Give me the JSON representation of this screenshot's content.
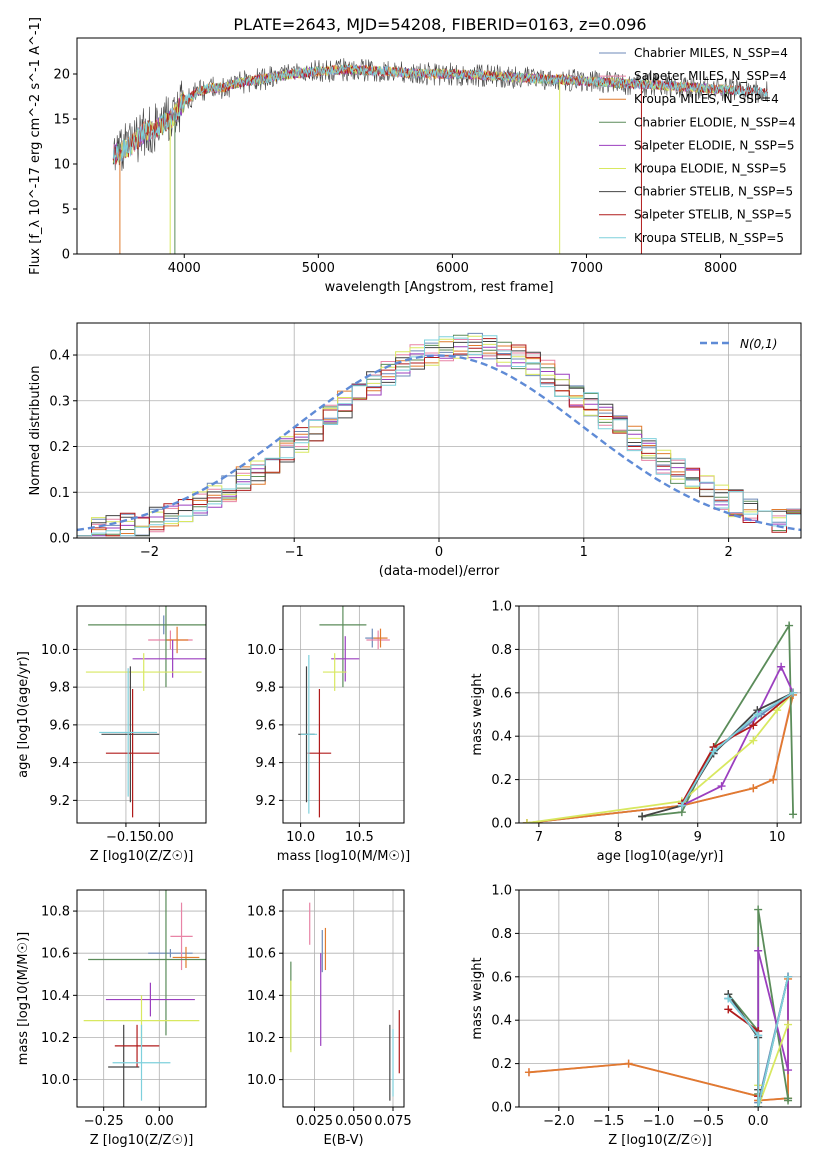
{
  "title": "PLATE=2643, MJD=54208, FIBERID=0163, z=0.096",
  "colors": [
    "#6e8ab8",
    "#e884a6",
    "#e07b2f",
    "#5b8c5a",
    "#9b3fbf",
    "#d8e860",
    "#444444",
    "#b01b1b",
    "#7ed0dc"
  ],
  "legend": [
    "Chabrier MILES, N_SSP=4",
    "Salpeter MILES, N_SSP=4",
    "Kroupa MILES, N_SSP=4",
    "Chabrier ELODIE, N_SSP=4",
    "Salpeter ELODIE, N_SSP=5",
    "Kroupa ELODIE, N_SSP=5",
    "Chabrier STELIB, N_SSP=5",
    "Salpeter STELIB, N_SSP=5",
    "Kroupa STELIB, N_SSP=5"
  ],
  "chart_data": [
    {
      "id": "spectrum",
      "type": "line",
      "xlabel": "wavelength [Angstrom, rest frame]",
      "ylabel": "Flux [f_λ 10^-17 erg cm^-2 s^-1 A^-1]",
      "xlim": [
        3200,
        8600
      ],
      "ylim": [
        0,
        24
      ],
      "xticks": [
        4000,
        5000,
        6000,
        7000,
        8000
      ],
      "yticks": [
        0,
        5,
        10,
        15,
        20
      ],
      "grid": false,
      "legend_position": "right",
      "spectrum_profile": {
        "x": [
          3470,
          3600,
          3700,
          3800,
          3900,
          4000,
          4100,
          4200,
          4300,
          4400,
          4600,
          4800,
          5000,
          5200,
          5500,
          5800,
          6000,
          6300,
          6600,
          6900,
          7200,
          7500,
          7800,
          8100,
          8350
        ],
        "y": [
          11,
          12,
          13.5,
          14,
          15,
          17,
          18,
          18.5,
          18.5,
          19,
          19.5,
          20,
          20.3,
          20.5,
          20.3,
          20,
          20,
          19.8,
          19.5,
          19.3,
          19,
          18.8,
          18.5,
          18.2,
          18
        ]
      }
    },
    {
      "id": "residuals",
      "type": "line",
      "xlabel": "(data-model)/error",
      "ylabel": "Normed distribution",
      "xlim": [
        -2.5,
        2.5
      ],
      "ylim": [
        0,
        0.47
      ],
      "xticks": [
        -2,
        -1,
        0,
        1,
        2
      ],
      "yticks": [
        0.0,
        0.1,
        0.2,
        0.3,
        0.4
      ],
      "grid": true,
      "legend_position": "top-right",
      "legend_label": "N(0,1)",
      "bin_width": 0.1
    },
    {
      "id": "age_vs_Z",
      "type": "scatter",
      "xlabel": "Z [log10(Z/Z☉)]",
      "ylabel": "age  [log10(age/yr)]",
      "xlim": [
        -0.37,
        0.21
      ],
      "ylim": [
        9.08,
        10.23
      ],
      "xticks": [
        -0.15,
        0.0
      ],
      "xtick_labels": [
        "−0.15",
        "0.00"
      ],
      "yticks": [
        9.2,
        9.4,
        9.6,
        9.8,
        10.0
      ],
      "grid": true,
      "points": [
        {
          "x": 0.02,
          "y": 10.13,
          "xerr": 0.0,
          "yerr": 0.05
        },
        {
          "x": 0.05,
          "y": 10.05,
          "xerr": 0.1,
          "yerr": 0.05
        },
        {
          "x": 0.08,
          "y": 10.05,
          "xerr": 0.05,
          "yerr": 0.07
        },
        {
          "x": 0.03,
          "y": 10.13,
          "xerr": 0.35,
          "yerr": 0.33
        },
        {
          "x": 0.06,
          "y": 9.95,
          "xerr": 0.18,
          "yerr": 0.1
        },
        {
          "x": -0.07,
          "y": 9.88,
          "xerr": 0.26,
          "yerr": 0.1
        },
        {
          "x": -0.13,
          "y": 9.55,
          "xerr": 0.13,
          "yerr": 0.36
        },
        {
          "x": -0.12,
          "y": 9.45,
          "xerr": 0.12,
          "yerr": 0.34
        },
        {
          "x": -0.14,
          "y": 9.56,
          "xerr": 0.13,
          "yerr": 0.34
        }
      ]
    },
    {
      "id": "age_vs_mass",
      "type": "scatter",
      "xlabel": "mass [log10(M/M☉)]",
      "ylabel": "",
      "xlim": [
        9.85,
        10.88
      ],
      "ylim": [
        9.08,
        10.23
      ],
      "xticks": [
        10.0,
        10.5
      ],
      "xtick_labels": [
        "10.0",
        "10.5"
      ],
      "yticks": [
        9.2,
        9.4,
        9.6,
        9.8,
        10.0
      ],
      "grid": true,
      "points": [
        {
          "x": 10.61,
          "y": 10.06,
          "xerr": 0.06,
          "yerr": 0.05
        },
        {
          "x": 10.66,
          "y": 10.05,
          "xerr": 0.1,
          "yerr": 0.05
        },
        {
          "x": 10.68,
          "y": 10.06,
          "xerr": 0.06,
          "yerr": 0.05
        },
        {
          "x": 10.36,
          "y": 10.13,
          "xerr": 0.2,
          "yerr": 0.33
        },
        {
          "x": 10.38,
          "y": 9.95,
          "xerr": 0.12,
          "yerr": 0.12
        },
        {
          "x": 10.29,
          "y": 9.88,
          "xerr": 0.1,
          "yerr": 0.1
        },
        {
          "x": 10.05,
          "y": 9.55,
          "xerr": 0.07,
          "yerr": 0.36
        },
        {
          "x": 10.16,
          "y": 9.45,
          "xerr": 0.1,
          "yerr": 0.34
        },
        {
          "x": 10.07,
          "y": 9.55,
          "xerr": 0.07,
          "yerr": 0.42
        }
      ]
    },
    {
      "id": "weight_vs_age",
      "type": "line",
      "xlabel": "age  [log10(age/yr)]",
      "ylabel": "mass weight",
      "xlim": [
        6.75,
        10.3
      ],
      "ylim": [
        0,
        1.0
      ],
      "xticks": [
        7,
        8,
        9,
        10
      ],
      "yticks": [
        0.0,
        0.2,
        0.4,
        0.6,
        0.8,
        1.0
      ],
      "grid": true,
      "series": [
        {
          "x": [
            6.85,
            8.8,
            9.2,
            9.8,
            10.2
          ],
          "y": [
            0.0,
            0.08,
            0.33,
            0.5,
            0.6
          ]
        },
        {
          "x": [
            6.85,
            8.8,
            9.7,
            9.95,
            10.2
          ],
          "y": [
            0.0,
            0.08,
            0.16,
            0.2,
            0.6
          ]
        },
        {
          "x": [
            6.85,
            8.8,
            9.7,
            9.95,
            10.2
          ],
          "y": [
            0.0,
            0.08,
            0.16,
            0.2,
            0.59
          ]
        },
        {
          "x": [
            8.3,
            8.8,
            9.2,
            10.15,
            10.2
          ],
          "y": [
            0.03,
            0.05,
            0.35,
            0.91,
            0.04
          ]
        },
        {
          "x": [
            8.8,
            9.3,
            10.05,
            10.2,
            10.2
          ],
          "y": [
            0.08,
            0.17,
            0.72,
            0.6,
            0.6
          ]
        },
        {
          "x": [
            6.85,
            8.8,
            9.7,
            10.0,
            10.2
          ],
          "y": [
            0.0,
            0.1,
            0.38,
            0.52,
            0.6
          ]
        },
        {
          "x": [
            8.3,
            8.8,
            9.2,
            9.75,
            10.2
          ],
          "y": [
            0.03,
            0.08,
            0.32,
            0.52,
            0.6
          ]
        },
        {
          "x": [
            8.8,
            9.2,
            9.7,
            10.2
          ],
          "y": [
            0.09,
            0.35,
            0.45,
            0.6
          ]
        },
        {
          "x": [
            8.8,
            9.2,
            9.75,
            10.2
          ],
          "y": [
            0.08,
            0.33,
            0.5,
            0.6
          ]
        }
      ]
    },
    {
      "id": "mass_vs_Z",
      "type": "scatter",
      "xlabel": "Z [log10(Z/Z☉)]",
      "ylabel": "mass [log10(M/M☉)]",
      "xlim": [
        -0.37,
        0.21
      ],
      "ylim": [
        9.87,
        10.9
      ],
      "xticks": [
        -0.25,
        0.0
      ],
      "xtick_labels": [
        "−0.25",
        "0.00"
      ],
      "yticks": [
        10.0,
        10.2,
        10.4,
        10.6,
        10.8
      ],
      "grid": true,
      "points": [
        {
          "x": 0.05,
          "y": 10.6,
          "xerr": 0.1,
          "yerr": 0.02
        },
        {
          "x": 0.1,
          "y": 10.68,
          "xerr": 0.05,
          "yerr": 0.16
        },
        {
          "x": 0.12,
          "y": 10.58,
          "xerr": 0.06,
          "yerr": 0.05
        },
        {
          "x": 0.03,
          "y": 10.57,
          "xerr": 0.35,
          "yerr": 0.36
        },
        {
          "x": -0.04,
          "y": 10.38,
          "xerr": 0.2,
          "yerr": 0.08
        },
        {
          "x": -0.08,
          "y": 10.28,
          "xerr": 0.26,
          "yerr": 0.12
        },
        {
          "x": -0.16,
          "y": 10.06,
          "xerr": 0.07,
          "yerr": 0.2
        },
        {
          "x": -0.1,
          "y": 10.16,
          "xerr": 0.1,
          "yerr": 0.1
        },
        {
          "x": -0.08,
          "y": 10.08,
          "xerr": 0.13,
          "yerr": 0.18
        }
      ]
    },
    {
      "id": "mass_vs_ebv",
      "type": "scatter",
      "xlabel": "E(B-V)",
      "ylabel": "",
      "xlim": [
        0.005,
        0.082
      ],
      "ylim": [
        9.87,
        10.9
      ],
      "xticks": [
        0.025,
        0.05,
        0.075
      ],
      "xtick_labels": [
        "0.025",
        "0.050",
        "0.075"
      ],
      "yticks": [
        10.0,
        10.2,
        10.4,
        10.6,
        10.8
      ],
      "grid": true,
      "points": [
        {
          "x": 0.03,
          "y": 10.61,
          "yerr": 0.1
        },
        {
          "x": 0.022,
          "y": 10.74,
          "yerr": 0.1
        },
        {
          "x": 0.032,
          "y": 10.62,
          "yerr": 0.1
        },
        {
          "x": 0.01,
          "y": 10.35,
          "yerr": 0.21
        },
        {
          "x": 0.029,
          "y": 10.38,
          "yerr": 0.22
        },
        {
          "x": 0.01,
          "y": 10.3,
          "yerr": 0.17
        },
        {
          "x": 0.073,
          "y": 10.08,
          "yerr": 0.18
        },
        {
          "x": 0.079,
          "y": 10.18,
          "yerr": 0.15
        },
        {
          "x": 0.075,
          "y": 10.08,
          "yerr": 0.16
        }
      ]
    },
    {
      "id": "weight_vs_Z",
      "type": "line",
      "xlabel": "Z [log10(Z/Z☉)]",
      "ylabel": "mass weight",
      "xlim": [
        -2.4,
        0.43
      ],
      "ylim": [
        0,
        1.0
      ],
      "xticks": [
        -2.0,
        -1.5,
        -1.0,
        -0.5,
        0.0
      ],
      "xtick_labels": [
        "−2.0",
        "−1.5",
        "−1.0",
        "−0.5",
        "0.0"
      ],
      "yticks": [
        0.0,
        0.2,
        0.4,
        0.6,
        0.8,
        1.0
      ],
      "grid": true,
      "series": [
        {
          "x": [
            -0.3,
            0.0,
            0.0,
            0.0,
            0.0,
            0.3
          ],
          "y": [
            0.5,
            0.33,
            0.05,
            0.05,
            0.02,
            0.6
          ]
        },
        {
          "x": [
            -2.3,
            -1.3,
            0.0,
            0.0,
            0.3,
            0.3
          ],
          "y": [
            0.16,
            0.2,
            0.05,
            0.03,
            0.04,
            0.6
          ]
        },
        {
          "x": [
            -2.3,
            -1.3,
            0.0,
            0.0,
            0.3,
            0.3
          ],
          "y": [
            0.16,
            0.2,
            0.05,
            0.03,
            0.04,
            0.59
          ]
        },
        {
          "x": [
            -0.3,
            0.0,
            0.0,
            0.0,
            0.3,
            0.3
          ],
          "y": [
            0.52,
            0.35,
            0.06,
            0.91,
            0.04,
            0.03
          ]
        },
        {
          "x": [
            0.0,
            0.0,
            0.3,
            0.3
          ],
          "y": [
            0.35,
            0.72,
            0.17,
            0.6
          ]
        },
        {
          "x": [
            0.0,
            0.0,
            0.3
          ],
          "y": [
            0.1,
            0.0,
            0.38
          ]
        },
        {
          "x": [
            -0.3,
            0.0,
            0.0,
            0.0,
            0.3
          ],
          "y": [
            0.52,
            0.32,
            0.08,
            0.0,
            0.6
          ]
        },
        {
          "x": [
            -0.3,
            0.0,
            0.0
          ],
          "y": [
            0.45,
            0.35,
            0.05
          ]
        },
        {
          "x": [
            -0.3,
            0.0,
            0.0,
            0.3
          ],
          "y": [
            0.5,
            0.33,
            0.0,
            0.6
          ]
        }
      ]
    }
  ]
}
